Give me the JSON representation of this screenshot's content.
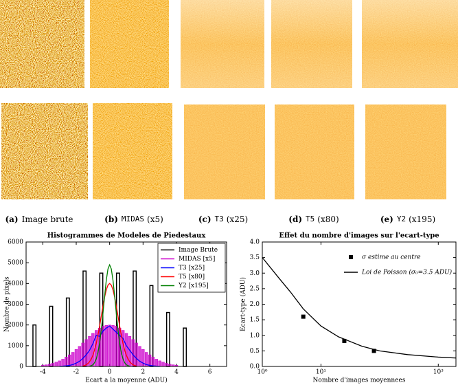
{
  "captions": [
    {
      "label": "(a)",
      "text": "Image brute"
    },
    {
      "label": "(b)",
      "code": "MIDAS",
      "text": "(x5)"
    },
    {
      "label": "(c)",
      "code": "T3",
      "text": "(x25)"
    },
    {
      "label": "(d)",
      "code": "T5",
      "text": "(x80)"
    },
    {
      "label": "(e)",
      "code": "Y2",
      "text": "(x195)"
    }
  ],
  "chart_data": [
    {
      "type": "histogram",
      "title": "Histogrammes de Modeles de Piedestaux",
      "xlabel": "Ecart a la moyenne (ADU)",
      "ylabel": "Nombre de pixels",
      "xlim": [
        -5,
        7
      ],
      "ylim": [
        0,
        6000
      ],
      "xticks": [
        -4,
        -2,
        0,
        2,
        4,
        6
      ],
      "yticks": [
        0,
        1000,
        2000,
        3000,
        4000,
        5000,
        6000
      ],
      "legend": "upper right",
      "legend_frame": true,
      "series": [
        {
          "name": "Image Brute",
          "style": "outline-bar",
          "color": "#000000",
          "x": [
            -4.5,
            -3.5,
            -2.5,
            -1.5,
            -0.5,
            0.5,
            1.5,
            2.5,
            3.5,
            4.5
          ],
          "values": [
            2000,
            2900,
            3300,
            4600,
            4500,
            4500,
            4600,
            3900,
            2600,
            1850
          ]
        },
        {
          "name": "MIDAS [x5]",
          "style": "bar",
          "color": "#cc00cc",
          "x": [
            -4,
            -3.8,
            -3.6,
            -3.4,
            -3.2,
            -3,
            -2.8,
            -2.6,
            -2.4,
            -2.2,
            -2,
            -1.8,
            -1.6,
            -1.4,
            -1.2,
            -1,
            -0.8,
            -0.6,
            -0.4,
            -0.2,
            0,
            0.2,
            0.4,
            0.6,
            0.8,
            1,
            1.2,
            1.4,
            1.6,
            1.8,
            2,
            2.2,
            2.4,
            2.6,
            2.8,
            3,
            3.2,
            3.4,
            3.6,
            3.8,
            4
          ],
          "values": [
            60,
            80,
            110,
            150,
            210,
            270,
            350,
            450,
            560,
            680,
            820,
            970,
            1130,
            1300,
            1450,
            1600,
            1740,
            1850,
            1940,
            1980,
            2000,
            1980,
            1940,
            1850,
            1740,
            1600,
            1450,
            1300,
            1130,
            970,
            820,
            680,
            560,
            450,
            350,
            270,
            210,
            150,
            110,
            80,
            60
          ]
        },
        {
          "name": "T3 [x25]",
          "style": "line",
          "color": "#0000ff",
          "x": [
            -3,
            -2.8,
            -2.6,
            -2.4,
            -2.2,
            -2,
            -1.8,
            -1.6,
            -1.4,
            -1.2,
            -1,
            -0.8,
            -0.6,
            -0.4,
            -0.2,
            0,
            0.2,
            0.4,
            0.6,
            0.8,
            1,
            1.2,
            1.4,
            1.6,
            1.8,
            2,
            2.2,
            2.4,
            2.6,
            2.8,
            3
          ],
          "values": [
            10,
            15,
            30,
            50,
            90,
            160,
            250,
            390,
            560,
            780,
            1100,
            1500,
            1450,
            1700,
            1850,
            1950,
            1800,
            1650,
            1500,
            1350,
            1000,
            780,
            560,
            390,
            250,
            160,
            90,
            50,
            30,
            15,
            10
          ]
        },
        {
          "name": "T5 [x80]",
          "style": "line",
          "color": "#ff0000",
          "x": [
            -1.6,
            -1.5,
            -1.4,
            -1.3,
            -1.2,
            -1.1,
            -1,
            -0.9,
            -0.8,
            -0.7,
            -0.6,
            -0.5,
            -0.4,
            -0.3,
            -0.2,
            -0.1,
            0,
            0.1,
            0.2,
            0.3,
            0.4,
            0.5,
            0.6,
            0.7,
            0.8,
            0.9,
            1,
            1.1,
            1.2,
            1.3,
            1.4,
            1.5,
            1.6
          ],
          "values": [
            20,
            45,
            80,
            140,
            230,
            360,
            540,
            790,
            1110,
            1500,
            1950,
            2430,
            2900,
            3340,
            3690,
            3920,
            4000,
            3920,
            3690,
            3340,
            2900,
            2430,
            1950,
            1500,
            1110,
            790,
            540,
            360,
            230,
            140,
            80,
            45,
            20
          ]
        },
        {
          "name": "Y2 [x195]",
          "style": "line",
          "color": "#008000",
          "x": [
            -1.2,
            -1.1,
            -1,
            -0.9,
            -0.8,
            -0.7,
            -0.6,
            -0.5,
            -0.4,
            -0.3,
            -0.2,
            -0.1,
            0,
            0.1,
            0.2,
            0.3,
            0.4,
            0.5,
            0.6,
            0.7,
            0.8,
            0.9,
            1,
            1.1,
            1.2
          ],
          "values": [
            14,
            35,
            80,
            180,
            360,
            660,
            1130,
            1770,
            2550,
            3390,
            4160,
            4700,
            4900,
            4700,
            4160,
            3390,
            2550,
            1770,
            1130,
            660,
            360,
            180,
            80,
            35,
            14
          ]
        }
      ]
    },
    {
      "type": "scatter",
      "title": "Effet du nombre d'images sur l'ecart-type",
      "xlabel": "Nombre d'images moyennees",
      "ylabel": "Ecart-type (ADU)",
      "xscale": "log",
      "xlim": [
        1,
        2000
      ],
      "ylim": [
        0,
        4
      ],
      "xticks": [
        {
          "value": 1,
          "label": "10⁰"
        },
        {
          "value": 10,
          "label": "10¹"
        },
        {
          "value": 1000,
          "label": "10³"
        }
      ],
      "yticks": [
        {
          "value": 0,
          "label": "0.0"
        },
        0.5,
        {
          "value": 1,
          "label": "1.0"
        },
        1.5,
        {
          "value": 2,
          "label": "2.0"
        },
        2.5,
        {
          "value": 3,
          "label": "3.0"
        },
        3.5,
        {
          "value": 4,
          "label": "4.0"
        }
      ],
      "legend": "upper right",
      "legend_frame": false,
      "series": [
        {
          "name": "σ estime au centre",
          "style": "marker",
          "color": "#000000",
          "x": [
            5,
            25,
            80
          ],
          "values": [
            1.6,
            0.82,
            0.5
          ]
        },
        {
          "name": "Loi de Poisson (σ₀=3.5 ADU)",
          "style": "line",
          "color": "#000000",
          "x": [
            1,
            2,
            3,
            5,
            10,
            20,
            50,
            100,
            300,
            1000,
            2000
          ],
          "values": [
            3.5,
            2.8,
            2.4,
            1.85,
            1.3,
            0.95,
            0.65,
            0.5,
            0.38,
            0.3,
            0.27
          ]
        }
      ]
    }
  ]
}
